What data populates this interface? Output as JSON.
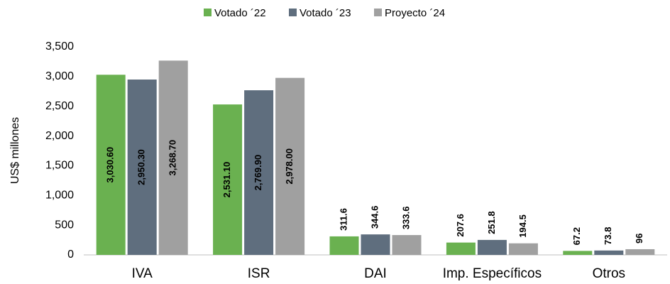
{
  "chart_data": {
    "type": "bar",
    "ylabel": "US$ millones",
    "categories": [
      "IVA",
      "ISR",
      "DAI",
      "Imp. Específicos",
      "Otros"
    ],
    "series": [
      {
        "name": "Votado ´22",
        "color": "#6ab150",
        "values": [
          3030.6,
          2531.1,
          311.6,
          207.6,
          67.2
        ],
        "value_labels": [
          "3,030.60",
          "2,531.10",
          "311.6",
          "207.6",
          "67.2"
        ]
      },
      {
        "name": "Votado ´23",
        "color": "#5f6e7e",
        "values": [
          2950.3,
          2769.9,
          344.6,
          251.8,
          73.8
        ],
        "value_labels": [
          "2,950.30",
          "2,769.90",
          "344.6",
          "251.8",
          "73.8"
        ]
      },
      {
        "name": "Proyecto ´24",
        "color": "#a0a0a0",
        "values": [
          3268.7,
          2978,
          333.6,
          194.5,
          96
        ],
        "value_labels": [
          "3,268.70",
          "2,978.00",
          "333.6",
          "194.5",
          "96"
        ]
      }
    ],
    "ylim": [
      0,
      3500
    ],
    "yticks": [
      0,
      500,
      {
        "value": 1000,
        "label": "1,000"
      },
      {
        "value": 1500,
        "label": "1,500"
      },
      {
        "value": 2000,
        "label": "2,000"
      },
      {
        "value": 2500,
        "label": "2,500"
      },
      {
        "value": 3000,
        "label": "3,000"
      },
      {
        "value": 3500,
        "label": "3,500"
      }
    ],
    "grid": false,
    "legend": "top"
  }
}
